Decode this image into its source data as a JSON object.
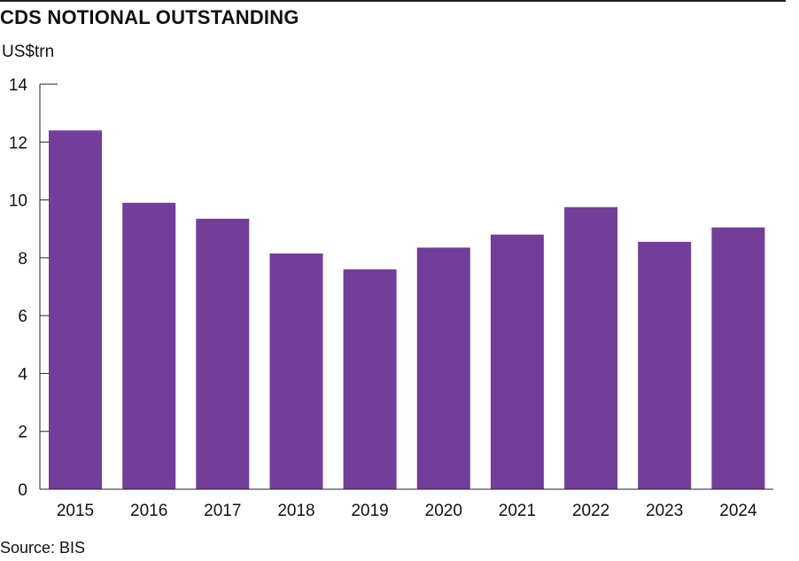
{
  "chart_data": {
    "type": "bar",
    "title": "CDS NOTIONAL OUTSTANDING",
    "ylabel": "US$trn",
    "xlabel": "",
    "categories": [
      "2015",
      "2016",
      "2017",
      "2018",
      "2019",
      "2020",
      "2021",
      "2022",
      "2023",
      "2024"
    ],
    "values": [
      12.4,
      9.9,
      9.35,
      8.15,
      7.6,
      8.35,
      8.8,
      9.75,
      8.55,
      9.05
    ],
    "ylim": [
      0,
      14
    ],
    "yticks": [
      0,
      2,
      4,
      6,
      8,
      10,
      12,
      14
    ],
    "bar_color": "#733d9a",
    "grid": false,
    "source": "Source: BIS"
  }
}
